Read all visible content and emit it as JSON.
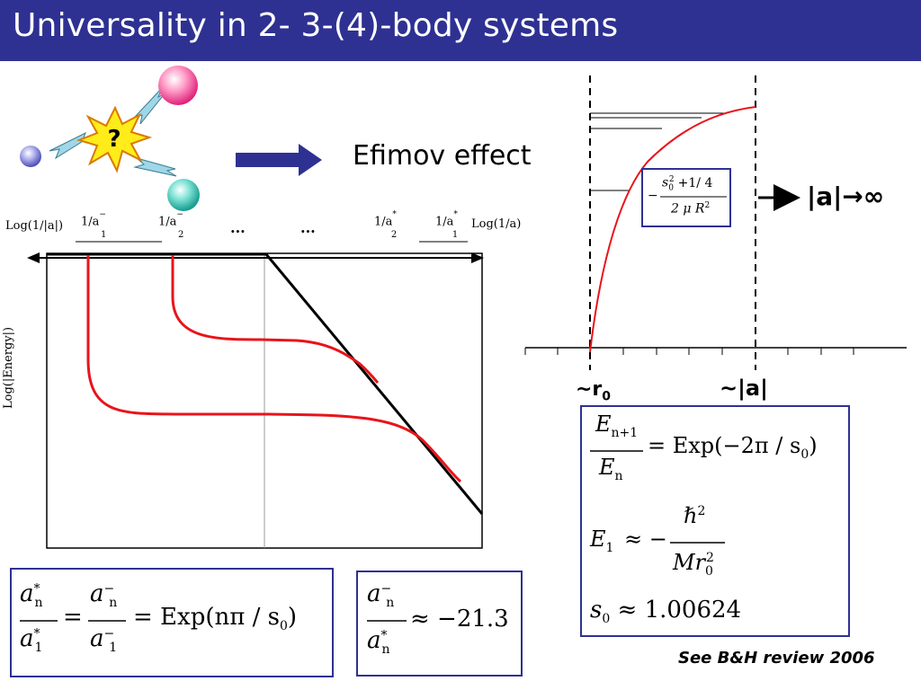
{
  "header": {
    "title": "Universality in 2- 3-(4)-body systems"
  },
  "scattering_icon": {
    "question_mark": "?"
  },
  "efimov": {
    "label": "Efimov effect"
  },
  "potential_plot": {
    "formula": {
      "sign": "−",
      "num_s": "s",
      "num_sub": "0",
      "num_sup": "2",
      "num_rest": "+1/ 4",
      "den": "2 μ R",
      "den_sup": "2"
    },
    "limit_label": "|a|→∞",
    "tick_r0": "~r",
    "tick_r0_sub": "0",
    "tick_a": "~|a|"
  },
  "energy_plot": {
    "left_axis_label": "Log(1/|a|)",
    "right_axis_label": "Log(1/a)",
    "y_label": "Log(|Energy|)",
    "ellipsis_1": "...",
    "ellipsis_2": "...",
    "ticks": [
      {
        "base": "1/a",
        "sup": "−",
        "sub": "1"
      },
      {
        "base": "1/a",
        "sup": "−",
        "sub": "2"
      },
      {
        "base": "1/a",
        "sup": "*",
        "sub": "2"
      },
      {
        "base": "1/a",
        "sup": "*",
        "sub": "1"
      }
    ]
  },
  "equations": {
    "ratio": {
      "num": "E",
      "num_sub": "n+1",
      "den": "E",
      "den_sub": "n",
      "rhs": "= Exp(−2π / s",
      "rhs_sub": "0",
      "rhs_end": ")"
    },
    "e1": {
      "lhs": "E",
      "lhs_sub": "1",
      "approx": "≈ −",
      "num": "ℏ",
      "num_sup": "2",
      "den": "Mr",
      "den_sub": "0",
      "den_sup": "2"
    },
    "s0": {
      "lhs": "s",
      "lhs_sub": "0",
      "rhs": "≈ 1.00624"
    },
    "scaling": {
      "a_star_n": "a",
      "sup_star": "*",
      "sub_n": "n",
      "sub_1": "1",
      "a_minus": "a",
      "sup_minus": "−",
      "rhs": "= Exp(nπ / s",
      "rhs_sub": "0",
      "rhs_end": ")"
    },
    "ratio_value": {
      "rhs": "≈ −21.3"
    }
  },
  "reference": "See B&H review 2006",
  "colors": {
    "title_bar": "#2e3192",
    "curve": "#e8141b",
    "box_border": "#2e3192",
    "arrow": "#2e3192"
  }
}
